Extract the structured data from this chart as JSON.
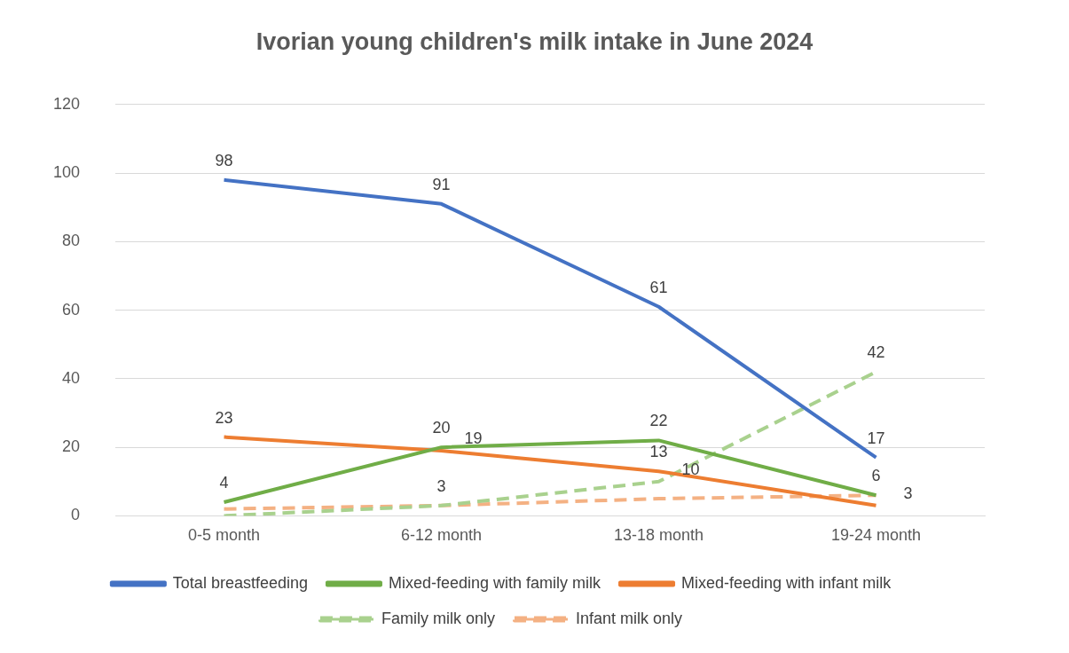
{
  "chart_data": {
    "type": "line",
    "title": "Ivorian young children's milk intake in June 2024",
    "categories": [
      "0-5 month",
      "6-12 month",
      "13-18 month",
      "19-24 month"
    ],
    "ylim": [
      0,
      120
    ],
    "yticks": [
      0,
      20,
      40,
      60,
      80,
      100,
      120
    ],
    "grid": "y",
    "legend": "bottom",
    "marker": "none",
    "series": [
      {
        "name": "Total breastfeeding",
        "color": "#4472c4",
        "values": [
          98,
          91,
          61,
          17
        ],
        "value_labels": [
          "98",
          "91",
          "61",
          "17"
        ],
        "line_style": "solid"
      },
      {
        "name": "Mixed-feeding with family milk",
        "color": "#70ad47",
        "values": [
          4,
          20,
          22,
          6
        ],
        "value_labels": [
          "4",
          "20",
          "22",
          "6"
        ],
        "line_style": "solid"
      },
      {
        "name": "Mixed-feeding with infant milk",
        "color": "#ed7d31",
        "values": [
          23,
          19,
          13,
          3
        ],
        "value_labels": [
          "23",
          "19",
          "13",
          "3"
        ],
        "line_style": "solid"
      },
      {
        "name": "Family milk only",
        "color": "#a9d18e",
        "values": [
          0,
          3,
          10,
          42
        ],
        "value_labels": [
          null,
          "3",
          "10",
          "42"
        ],
        "line_style": "dashed"
      },
      {
        "name": "Infant milk only",
        "color": "#f4b183",
        "values": [
          2,
          3,
          5,
          6
        ],
        "line_style": "dashed"
      }
    ]
  }
}
